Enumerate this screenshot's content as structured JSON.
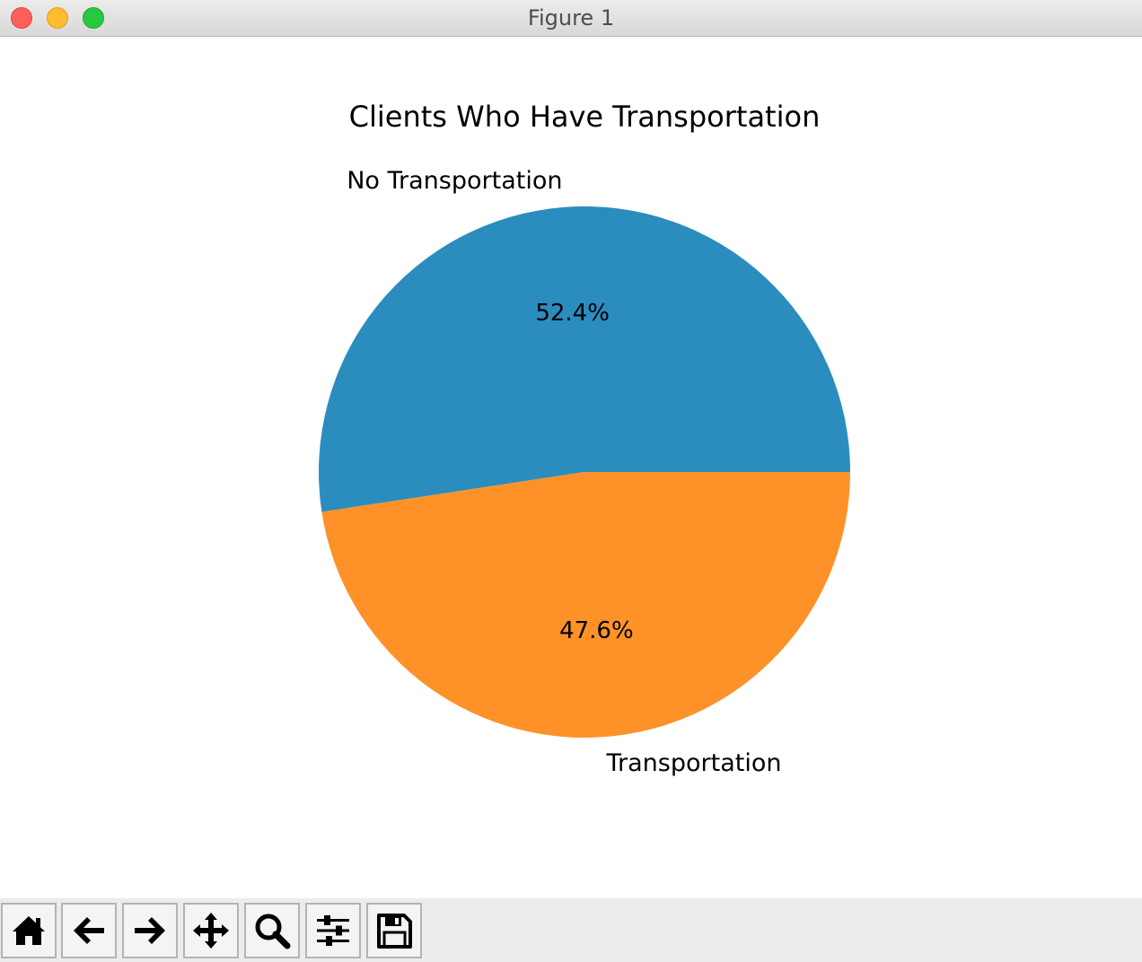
{
  "window": {
    "title": "Figure 1"
  },
  "toolbar": {
    "buttons": [
      {
        "name": "home-button",
        "icon": "home-icon"
      },
      {
        "name": "back-button",
        "icon": "arrow-left-icon"
      },
      {
        "name": "forward-button",
        "icon": "arrow-right-icon"
      },
      {
        "name": "pan-button",
        "icon": "move-icon"
      },
      {
        "name": "zoom-button",
        "icon": "magnifier-icon"
      },
      {
        "name": "configure-subplots-button",
        "icon": "sliders-icon"
      },
      {
        "name": "save-button",
        "icon": "floppy-disk-icon"
      }
    ]
  },
  "chart_data": {
    "type": "pie",
    "title": "Clients Who Have Transportation",
    "labels": [
      "No Transportation",
      "Transportation"
    ],
    "values": [
      52.4,
      47.6
    ],
    "autopct": [
      "52.4%",
      "47.6%"
    ],
    "colors": [
      "#2b8cbe",
      "#fe9228"
    ],
    "start_angle": 0,
    "counterclockwise": true
  }
}
